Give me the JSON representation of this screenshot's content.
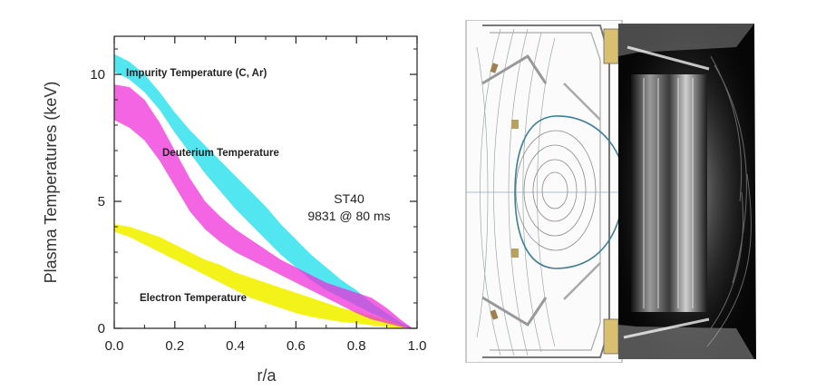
{
  "chart_data": {
    "type": "area",
    "xlabel": "r/a",
    "ylabel": "Plasma Temperatures (keV)",
    "xlim": [
      0,
      1.0
    ],
    "ylim": [
      0,
      11.5
    ],
    "x_ticks": [
      0.0,
      0.2,
      0.4,
      0.6,
      0.8,
      1.0
    ],
    "x_tick_labels": [
      "0.0",
      "0.2",
      "0.4",
      "0.6",
      "0.8",
      "1.0"
    ],
    "y_ticks": [
      0,
      5,
      10
    ],
    "y_tick_labels": [
      "0",
      "5",
      "10"
    ],
    "grid": false,
    "annotation": [
      "ST40",
      "9831 @ 80 ms"
    ],
    "series": [
      {
        "name": "Impurity Temperature (C, Ar)",
        "color": "#3fe4ee",
        "x": [
          0.0,
          0.05,
          0.1,
          0.15,
          0.2,
          0.25,
          0.3,
          0.35,
          0.4,
          0.45,
          0.5,
          0.55,
          0.6,
          0.65,
          0.7,
          0.75,
          0.8,
          0.85,
          0.9,
          0.95,
          0.98
        ],
        "upper": [
          10.8,
          10.5,
          10.0,
          9.3,
          8.5,
          7.8,
          7.2,
          6.6,
          6.0,
          5.4,
          4.8,
          4.1,
          3.5,
          2.9,
          2.4,
          1.9,
          1.5,
          1.0,
          0.6,
          0.2,
          0.05
        ],
        "lower": [
          10.1,
          9.8,
          9.3,
          8.6,
          7.7,
          6.9,
          6.1,
          5.4,
          4.7,
          4.1,
          3.5,
          2.9,
          2.4,
          1.9,
          1.5,
          1.2,
          0.9,
          0.6,
          0.35,
          0.1,
          0.0
        ]
      },
      {
        "name": "Deuterium Temperature",
        "color": "#ee2ad8",
        "x": [
          0.0,
          0.05,
          0.1,
          0.15,
          0.2,
          0.25,
          0.3,
          0.35,
          0.4,
          0.45,
          0.5,
          0.55,
          0.6,
          0.65,
          0.7,
          0.75,
          0.8,
          0.85,
          0.9,
          0.95,
          0.98
        ],
        "upper": [
          9.6,
          9.5,
          9.0,
          8.1,
          7.0,
          5.9,
          5.0,
          4.4,
          3.9,
          3.5,
          3.1,
          2.7,
          2.4,
          2.1,
          1.8,
          1.6,
          1.4,
          1.2,
          0.8,
          0.3,
          0.05
        ],
        "lower": [
          8.2,
          7.9,
          7.4,
          6.6,
          5.6,
          4.6,
          3.9,
          3.4,
          3.0,
          2.7,
          2.4,
          2.1,
          1.8,
          1.5,
          1.2,
          0.9,
          0.6,
          0.35,
          0.2,
          0.05,
          0.0
        ]
      },
      {
        "name": "Electron Temperature",
        "color": "#f2f200",
        "x": [
          0.0,
          0.05,
          0.1,
          0.15,
          0.2,
          0.25,
          0.3,
          0.35,
          0.4,
          0.45,
          0.5,
          0.55,
          0.6,
          0.65,
          0.7,
          0.75,
          0.8,
          0.85,
          0.9,
          0.95,
          0.98
        ],
        "upper": [
          4.1,
          4.0,
          3.8,
          3.6,
          3.3,
          3.0,
          2.7,
          2.5,
          2.2,
          2.0,
          1.8,
          1.6,
          1.4,
          1.2,
          1.0,
          0.8,
          0.65,
          0.5,
          0.35,
          0.15,
          0.05
        ],
        "lower": [
          3.8,
          3.6,
          3.3,
          3.0,
          2.7,
          2.4,
          2.1,
          1.8,
          1.5,
          1.2,
          1.0,
          0.8,
          0.6,
          0.45,
          0.35,
          0.25,
          0.2,
          0.12,
          0.05,
          0.0,
          0.0
        ]
      }
    ]
  },
  "colors": {
    "impurity": "#3fe4ee",
    "deuterium": "#ee2ad8",
    "electron": "#f2f200",
    "overlap": "#a98ef0"
  },
  "figure_right": {
    "left_panel": "tokamak-magnetic-equilibrium-cross-section",
    "right_panel": "plasma-camera-image"
  }
}
